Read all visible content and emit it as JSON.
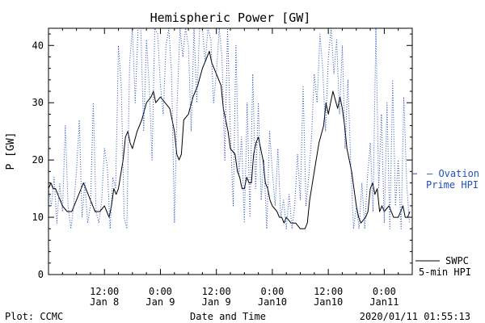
{
  "chart_data": {
    "type": "line",
    "title": "Hemispheric Power [GW]",
    "ylabel": "P [GW]",
    "xlabel": "Date and Time",
    "ylim": [
      0,
      43
    ],
    "yticks": [
      0,
      10,
      20,
      30,
      40
    ],
    "xlim_hours": [
      0,
      78
    ],
    "xticks": [
      {
        "t": 12,
        "line1": "12:00",
        "line2": "Jan 8"
      },
      {
        "t": 24,
        "line1": "0:00",
        "line2": "Jan 9"
      },
      {
        "t": 36,
        "line1": "12:00",
        "line2": "Jan 9"
      },
      {
        "t": 48,
        "line1": "0:00",
        "line2": "Jan10"
      },
      {
        "t": 60,
        "line1": "12:00",
        "line2": "Jan10"
      },
      {
        "t": 72,
        "line1": "0:00",
        "line2": "Jan11"
      }
    ],
    "series": [
      {
        "name": "SWPC 5-min HPI",
        "style": "solid",
        "color": "#000000",
        "points": [
          [
            0,
            15
          ],
          [
            0.5,
            16
          ],
          [
            1,
            15
          ],
          [
            1.5,
            15
          ],
          [
            2,
            14
          ],
          [
            2.5,
            13
          ],
          [
            3,
            12
          ],
          [
            4,
            11
          ],
          [
            5,
            11
          ],
          [
            6,
            13
          ],
          [
            7,
            15
          ],
          [
            7.5,
            16
          ],
          [
            8,
            15
          ],
          [
            9,
            13
          ],
          [
            9.5,
            12
          ],
          [
            10,
            11
          ],
          [
            11,
            11
          ],
          [
            12,
            12
          ],
          [
            12.5,
            11
          ],
          [
            13,
            10
          ],
          [
            13.5,
            12
          ],
          [
            14,
            15
          ],
          [
            14.5,
            14
          ],
          [
            15,
            15
          ],
          [
            16,
            20
          ],
          [
            16.5,
            24
          ],
          [
            17,
            25
          ],
          [
            17.5,
            23
          ],
          [
            18,
            22
          ],
          [
            19,
            25
          ],
          [
            20,
            27
          ],
          [
            21,
            30
          ],
          [
            22,
            31
          ],
          [
            22.5,
            32
          ],
          [
            23,
            30
          ],
          [
            24,
            31
          ],
          [
            25,
            30
          ],
          [
            26,
            29
          ],
          [
            27,
            25
          ],
          [
            27.5,
            21
          ],
          [
            28,
            20
          ],
          [
            28.5,
            21
          ],
          [
            29,
            27
          ],
          [
            30,
            28
          ],
          [
            31,
            31
          ],
          [
            32,
            33
          ],
          [
            33,
            36
          ],
          [
            34,
            38
          ],
          [
            34.5,
            39
          ],
          [
            35,
            37
          ],
          [
            36,
            35
          ],
          [
            37,
            33
          ],
          [
            37.5,
            29
          ],
          [
            38,
            27
          ],
          [
            38.5,
            25
          ],
          [
            39,
            22
          ],
          [
            40,
            21
          ],
          [
            40.5,
            18
          ],
          [
            41,
            17
          ],
          [
            41.5,
            15
          ],
          [
            42,
            15
          ],
          [
            42.5,
            17
          ],
          [
            43,
            16
          ],
          [
            43.5,
            16
          ],
          [
            44,
            21
          ],
          [
            44.5,
            23
          ],
          [
            45,
            24
          ],
          [
            45.5,
            22
          ],
          [
            46,
            20
          ],
          [
            46.5,
            16
          ],
          [
            47,
            15
          ],
          [
            47.5,
            13
          ],
          [
            48,
            12
          ],
          [
            49,
            11
          ],
          [
            49.5,
            10
          ],
          [
            50,
            10
          ],
          [
            50.5,
            9
          ],
          [
            51,
            10
          ],
          [
            52,
            9
          ],
          [
            53,
            9
          ],
          [
            54,
            8
          ],
          [
            55,
            8
          ],
          [
            55.5,
            9
          ],
          [
            56,
            13
          ],
          [
            57,
            18
          ],
          [
            58,
            23
          ],
          [
            59,
            26
          ],
          [
            59.5,
            30
          ],
          [
            60,
            28
          ],
          [
            60.5,
            30
          ],
          [
            61,
            32
          ],
          [
            62,
            29
          ],
          [
            62.5,
            31
          ],
          [
            63,
            29
          ],
          [
            63.5,
            26
          ],
          [
            64,
            22
          ],
          [
            65,
            18
          ],
          [
            66,
            12
          ],
          [
            66.5,
            10
          ],
          [
            67,
            9
          ],
          [
            68,
            10
          ],
          [
            68.5,
            11
          ],
          [
            69,
            15
          ],
          [
            69.5,
            16
          ],
          [
            70,
            14
          ],
          [
            70.5,
            15
          ],
          [
            71,
            11
          ],
          [
            71.5,
            12
          ],
          [
            72,
            11
          ],
          [
            73,
            12
          ],
          [
            74,
            10
          ],
          [
            75,
            10
          ],
          [
            76,
            12
          ],
          [
            76.5,
            10
          ],
          [
            77,
            10
          ],
          [
            77.5,
            11
          ]
        ]
      },
      {
        "name": "Ovation Prime HPI",
        "style": "dotted",
        "color": "#1f4fc0",
        "points": [
          [
            0,
            15
          ],
          [
            0.6,
            12
          ],
          [
            1.2,
            17
          ],
          [
            1.8,
            9
          ],
          [
            2.4,
            16
          ],
          [
            3,
            11
          ],
          [
            3.6,
            26
          ],
          [
            4.2,
            12
          ],
          [
            4.8,
            8
          ],
          [
            5.4,
            12
          ],
          [
            6,
            18
          ],
          [
            6.6,
            27
          ],
          [
            7.2,
            10
          ],
          [
            7.8,
            16
          ],
          [
            8.4,
            9
          ],
          [
            9,
            12
          ],
          [
            9.6,
            30
          ],
          [
            10.2,
            11
          ],
          [
            10.8,
            9
          ],
          [
            11.4,
            13
          ],
          [
            12,
            22
          ],
          [
            12.6,
            19
          ],
          [
            13.2,
            8
          ],
          [
            13.8,
            17
          ],
          [
            14.4,
            15
          ],
          [
            15,
            40
          ],
          [
            15.6,
            33
          ],
          [
            16.2,
            10
          ],
          [
            16.8,
            8
          ],
          [
            17.4,
            37
          ],
          [
            18,
            43
          ],
          [
            18.6,
            30
          ],
          [
            19.2,
            43
          ],
          [
            19.8,
            43
          ],
          [
            20.4,
            25
          ],
          [
            21,
            41
          ],
          [
            21.6,
            33
          ],
          [
            22.2,
            20
          ],
          [
            22.8,
            43
          ],
          [
            23.4,
            42
          ],
          [
            24,
            33
          ],
          [
            24.6,
            28
          ],
          [
            25.2,
            40
          ],
          [
            25.8,
            43
          ],
          [
            26.4,
            35
          ],
          [
            27,
            9
          ],
          [
            27.6,
            30
          ],
          [
            28.2,
            43
          ],
          [
            28.8,
            38
          ],
          [
            29.4,
            43
          ],
          [
            30,
            40
          ],
          [
            30.6,
            25
          ],
          [
            31.2,
            43
          ],
          [
            31.8,
            30
          ],
          [
            32.4,
            43
          ],
          [
            33,
            43
          ],
          [
            33.6,
            37
          ],
          [
            34.2,
            43
          ],
          [
            34.8,
            41
          ],
          [
            35.4,
            30
          ],
          [
            36,
            35
          ],
          [
            36.6,
            43
          ],
          [
            37.2,
            38
          ],
          [
            37.8,
            20
          ],
          [
            38.4,
            43
          ],
          [
            39,
            25
          ],
          [
            39.6,
            12
          ],
          [
            40.2,
            40
          ],
          [
            40.8,
            17
          ],
          [
            41.4,
            24
          ],
          [
            42,
            9
          ],
          [
            42.6,
            30
          ],
          [
            43.2,
            10
          ],
          [
            43.8,
            35
          ],
          [
            44.4,
            15
          ],
          [
            45,
            30
          ],
          [
            45.6,
            13
          ],
          [
            46.2,
            20
          ],
          [
            46.8,
            8
          ],
          [
            47.4,
            25
          ],
          [
            48,
            18
          ],
          [
            48.6,
            12
          ],
          [
            49.2,
            22
          ],
          [
            49.8,
            10
          ],
          [
            50.4,
            13
          ],
          [
            51,
            8
          ],
          [
            51.6,
            14
          ],
          [
            52.2,
            8
          ],
          [
            52.8,
            12
          ],
          [
            53.4,
            21
          ],
          [
            54,
            13
          ],
          [
            54.6,
            33
          ],
          [
            55.2,
            12
          ],
          [
            55.8,
            17
          ],
          [
            56.4,
            24
          ],
          [
            57,
            35
          ],
          [
            57.6,
            30
          ],
          [
            58.2,
            42
          ],
          [
            58.8,
            36
          ],
          [
            59.4,
            25
          ],
          [
            60,
            38
          ],
          [
            60.6,
            43
          ],
          [
            61.2,
            35
          ],
          [
            61.8,
            41
          ],
          [
            62.4,
            28
          ],
          [
            63,
            40
          ],
          [
            63.6,
            22
          ],
          [
            64.2,
            34
          ],
          [
            64.8,
            20
          ],
          [
            65.4,
            8
          ],
          [
            66,
            12
          ],
          [
            66.6,
            8
          ],
          [
            67.2,
            16
          ],
          [
            67.8,
            8
          ],
          [
            68.4,
            17
          ],
          [
            69,
            23
          ],
          [
            69.6,
            11
          ],
          [
            70.2,
            43
          ],
          [
            70.8,
            15
          ],
          [
            71.4,
            28
          ],
          [
            72,
            9
          ],
          [
            72.6,
            30
          ],
          [
            73.2,
            8
          ],
          [
            73.8,
            34
          ],
          [
            74.4,
            12
          ],
          [
            75,
            20
          ],
          [
            75.6,
            8
          ],
          [
            76.2,
            31
          ],
          [
            76.8,
            16
          ],
          [
            77.4,
            9
          ]
        ]
      }
    ],
    "legend": {
      "ovation_line1": "– Ovation",
      "ovation_line2": "Prime HPI",
      "swpc_line1": "SWPC",
      "swpc_line2": "5-min HPI"
    },
    "footer": {
      "left": "Plot: CCMC",
      "right": "2020/01/11 01:55:13"
    },
    "colors": {
      "axis": "#000000",
      "ovation": "#1f4fc0",
      "swpc": "#000000"
    }
  }
}
